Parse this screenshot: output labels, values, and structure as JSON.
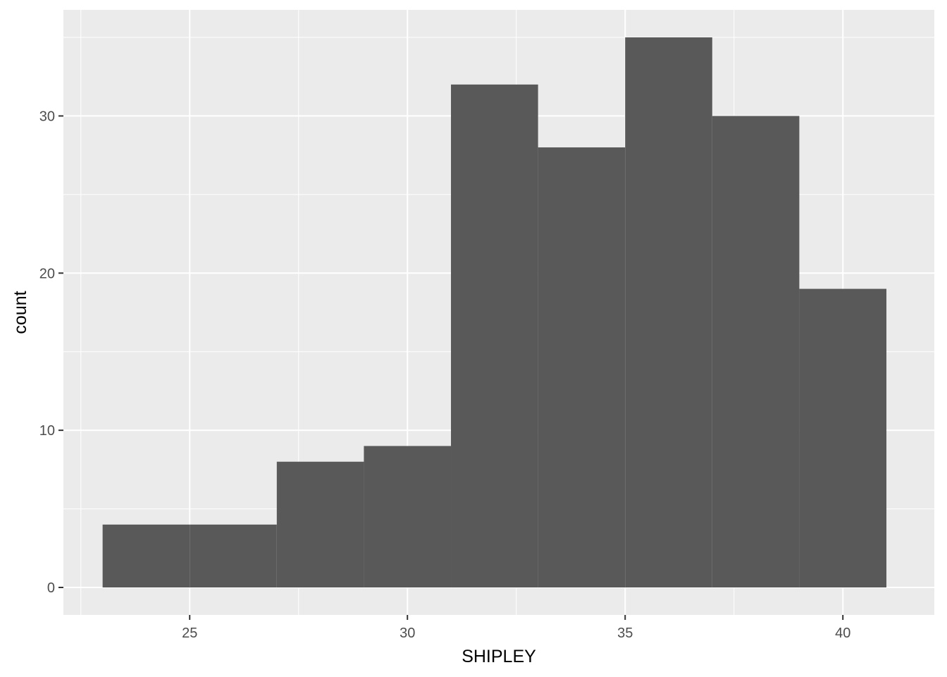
{
  "chart_data": {
    "type": "bar",
    "title": "",
    "xlabel": "SHIPLEY",
    "ylabel": "count",
    "xlim": [
      22.1,
      42.1
    ],
    "ylim": [
      -1.75,
      36.75
    ],
    "x_ticks": [
      25,
      30,
      35,
      40
    ],
    "y_ticks": [
      0,
      10,
      20,
      30
    ],
    "bins": [
      {
        "x_start": 23,
        "x_end": 25,
        "count": 4
      },
      {
        "x_start": 25,
        "x_end": 27,
        "count": 4
      },
      {
        "x_start": 27,
        "x_end": 29,
        "count": 8
      },
      {
        "x_start": 29,
        "x_end": 31,
        "count": 9
      },
      {
        "x_start": 31,
        "x_end": 33,
        "count": 32
      },
      {
        "x_start": 33,
        "x_end": 35,
        "count": 28
      },
      {
        "x_start": 35,
        "x_end": 37,
        "count": 35
      },
      {
        "x_start": 37,
        "x_end": 39,
        "count": 30
      },
      {
        "x_start": 39,
        "x_end": 41,
        "count": 19
      }
    ],
    "grid": true,
    "bar_color": "#595959",
    "panel_background": "#ebebeb",
    "gridline_color": "#ffffff"
  }
}
